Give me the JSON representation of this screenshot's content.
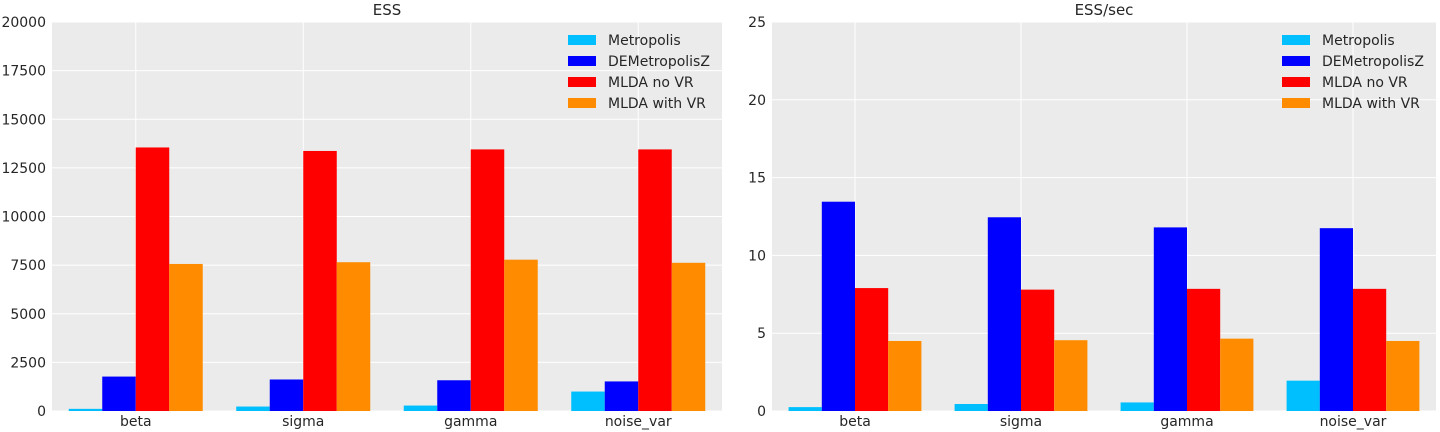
{
  "chart_data": [
    {
      "type": "bar",
      "title": "ESS",
      "categories": [
        "beta",
        "sigma",
        "gamma",
        "noise_var"
      ],
      "series": [
        {
          "name": "Metropolis",
          "color": "#00bfff",
          "values": [
            110,
            230,
            280,
            1000
          ]
        },
        {
          "name": "DEMetropolisZ",
          "color": "#0000ff",
          "values": [
            1770,
            1620,
            1580,
            1520
          ]
        },
        {
          "name": "MLDA no VR",
          "color": "#ff0000",
          "values": [
            13550,
            13370,
            13450,
            13450
          ]
        },
        {
          "name": "MLDA with VR",
          "color": "#ff8c00",
          "values": [
            7560,
            7650,
            7780,
            7620
          ]
        }
      ],
      "ylim": [
        0,
        20000
      ],
      "yticks": [
        0,
        2500,
        5000,
        7500,
        10000,
        12500,
        15000,
        17500,
        20000
      ],
      "grid": true,
      "legend": "top-right"
    },
    {
      "type": "bar",
      "title": "ESS/sec",
      "categories": [
        "beta",
        "sigma",
        "gamma",
        "noise_var"
      ],
      "series": [
        {
          "name": "Metropolis",
          "color": "#00bfff",
          "values": [
            0.25,
            0.45,
            0.55,
            1.95
          ]
        },
        {
          "name": "DEMetropolisZ",
          "color": "#0000ff",
          "values": [
            13.45,
            12.45,
            11.8,
            11.75
          ]
        },
        {
          "name": "MLDA no VR",
          "color": "#ff0000",
          "values": [
            7.9,
            7.8,
            7.85,
            7.85
          ]
        },
        {
          "name": "MLDA with VR",
          "color": "#ff8c00",
          "values": [
            4.5,
            4.55,
            4.65,
            4.5
          ]
        }
      ],
      "ylim": [
        0,
        25
      ],
      "yticks": [
        0,
        5,
        10,
        15,
        20,
        25
      ],
      "grid": true,
      "legend": "top-right"
    }
  ]
}
